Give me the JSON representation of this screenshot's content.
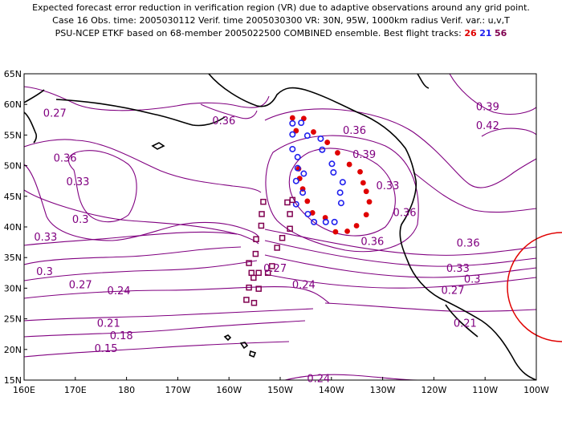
{
  "title": {
    "line1": "Expected forecast error reduction in verification region (VR) due to adaptive observations around any grid point.",
    "line2": "Case 16   Obs. time: 2005030112   Verif. time 2005030300   VR: 30N, 95W, 1000km radius   Verif. var.: u,v,T",
    "line3_prefix": "PSU-NCEP ETKF based on 68-member 2005022500 COMBINED ensemble.   Best flight tracks:",
    "track_red": "26",
    "track_blue": "21",
    "track_purple": "56"
  },
  "map": {
    "lon_range": [
      160,
      260
    ],
    "lat_range": [
      15,
      65
    ],
    "x_ticks": [
      "160E",
      "170E",
      "180",
      "170W",
      "160W",
      "150W",
      "140W",
      "130W",
      "120W",
      "110W",
      "100W"
    ],
    "y_ticks": [
      "15N",
      "20N",
      "25N",
      "30N",
      "35N",
      "40N",
      "45N",
      "50N",
      "55N",
      "60N",
      "65N"
    ],
    "contour_color": "#800080",
    "contour_labels": [
      {
        "text": "0.27",
        "lon": 166,
        "lat": 58.5
      },
      {
        "text": "0.36",
        "lon": 199,
        "lat": 57.3
      },
      {
        "text": "0.36",
        "lon": 168,
        "lat": 51.2
      },
      {
        "text": "0.33",
        "lon": 170.5,
        "lat": 47.3
      },
      {
        "text": "0.3",
        "lon": 171,
        "lat": 41.2
      },
      {
        "text": "0.33",
        "lon": 164.2,
        "lat": 38.3
      },
      {
        "text": "0.3",
        "lon": 164,
        "lat": 32.7
      },
      {
        "text": "0.27",
        "lon": 171,
        "lat": 30.5
      },
      {
        "text": "0.24",
        "lon": 178.5,
        "lat": 29.5
      },
      {
        "text": "0.21",
        "lon": 176.5,
        "lat": 24.2
      },
      {
        "text": "0.18",
        "lon": 179,
        "lat": 22.2
      },
      {
        "text": "0.15",
        "lon": 176,
        "lat": 20.1
      },
      {
        "text": "0.27",
        "lon": 209,
        "lat": 33.2
      },
      {
        "text": "0.24",
        "lon": 214.6,
        "lat": 30.5
      },
      {
        "text": "0.24",
        "lon": 217.5,
        "lat": 15.2
      },
      {
        "text": "0.36",
        "lon": 224.5,
        "lat": 55.7
      },
      {
        "text": "0.39",
        "lon": 226.4,
        "lat": 51.8
      },
      {
        "text": "0.36",
        "lon": 228,
        "lat": 37.6
      },
      {
        "text": "0.33",
        "lon": 231,
        "lat": 46.7
      },
      {
        "text": "0.36",
        "lon": 234.3,
        "lat": 42.3
      },
      {
        "text": "0.36",
        "lon": 246.7,
        "lat": 37.3
      },
      {
        "text": "0.33",
        "lon": 244.7,
        "lat": 33.2
      },
      {
        "text": "0.3",
        "lon": 247.5,
        "lat": 31.4
      },
      {
        "text": "0.27",
        "lon": 243.7,
        "lat": 29.6
      },
      {
        "text": "0.21",
        "lon": 246.1,
        "lat": 24.2
      },
      {
        "text": "0.39",
        "lon": 250.5,
        "lat": 59.6
      },
      {
        "text": "0.42",
        "lon": 250.5,
        "lat": 56.5
      }
    ],
    "verification_region_color": "#e00000",
    "tracks": [
      {
        "name": "26",
        "color": "#e00000",
        "marker": "dot",
        "points": [
          [
            212.4,
            57.8
          ],
          [
            214.6,
            57.7
          ],
          [
            213.1,
            55.7
          ],
          [
            216.5,
            55.5
          ],
          [
            219.2,
            53.8
          ],
          [
            221.2,
            52.1
          ],
          [
            223.5,
            50.2
          ],
          [
            225.6,
            49
          ],
          [
            226.2,
            47.2
          ],
          [
            226.8,
            45.8
          ],
          [
            227.4,
            44.1
          ],
          [
            226.8,
            42
          ],
          [
            224.9,
            40.2
          ],
          [
            223.1,
            39.3
          ],
          [
            220.8,
            39.2
          ],
          [
            218.8,
            41.5
          ],
          [
            216.3,
            42.3
          ],
          [
            215.3,
            44.2
          ],
          [
            214.4,
            46.2
          ],
          [
            213.8,
            47.9
          ],
          [
            213.6,
            49.5
          ]
        ]
      },
      {
        "name": "21",
        "color": "#2020ee",
        "marker": "circle",
        "points": [
          [
            212.4,
            56.9
          ],
          [
            214.1,
            57
          ],
          [
            212.4,
            55.1
          ],
          [
            215.3,
            54.9
          ],
          [
            217.9,
            54.4
          ],
          [
            212.4,
            52.7
          ],
          [
            213.4,
            51.4
          ],
          [
            218.2,
            52.6
          ],
          [
            220.1,
            50.3
          ],
          [
            213.4,
            49.6
          ],
          [
            214.6,
            48.7
          ],
          [
            213.1,
            47.5
          ],
          [
            214.4,
            45.6
          ],
          [
            220.4,
            48.9
          ],
          [
            222.2,
            47.3
          ],
          [
            221.7,
            45.6
          ],
          [
            221.9,
            43.9
          ],
          [
            213.1,
            43.7
          ],
          [
            215.4,
            42.1
          ],
          [
            216.6,
            40.8
          ],
          [
            218.9,
            40.8
          ],
          [
            220.6,
            40.8
          ]
        ]
      },
      {
        "name": "56",
        "color": "#800050",
        "marker": "square",
        "points": [
          [
            206.7,
            44.1
          ],
          [
            211.4,
            44
          ],
          [
            212.4,
            44.4
          ],
          [
            206.4,
            42.1
          ],
          [
            211.9,
            42.1
          ],
          [
            206.3,
            40.2
          ],
          [
            211.9,
            39.7
          ],
          [
            205.3,
            38
          ],
          [
            210.4,
            38.2
          ],
          [
            205.2,
            35.6
          ],
          [
            209.4,
            36.6
          ],
          [
            203.9,
            34.1
          ],
          [
            204.4,
            32.5
          ],
          [
            205.8,
            32.5
          ],
          [
            207.6,
            32.5
          ],
          [
            208.4,
            33.6
          ],
          [
            204.8,
            31.7
          ],
          [
            203.9,
            30.1
          ],
          [
            205.8,
            29.9
          ],
          [
            203.4,
            28.1
          ],
          [
            204.9,
            27.6
          ]
        ]
      }
    ]
  }
}
